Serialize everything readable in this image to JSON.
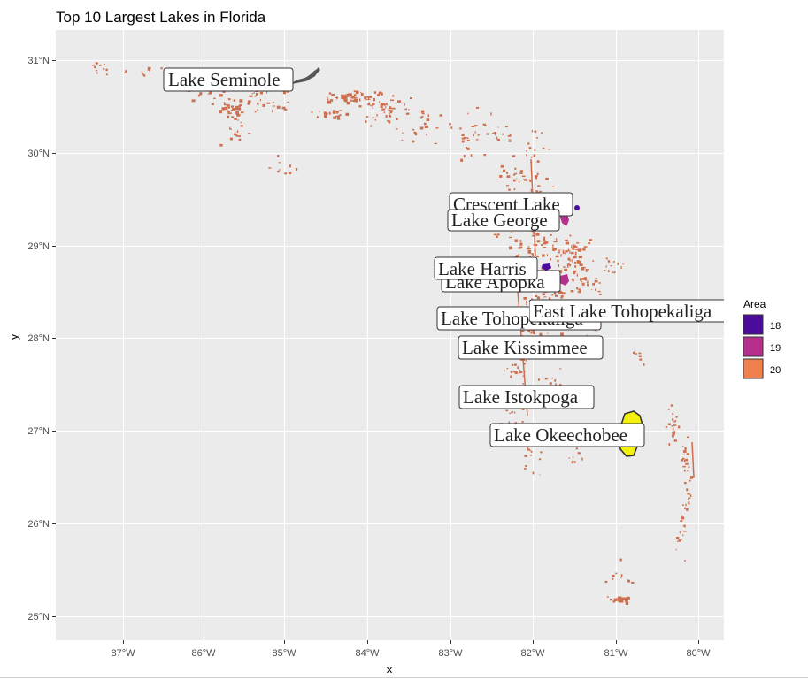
{
  "title": "Top 10 Largest Lakes in Florida",
  "x_axis": {
    "label": "x",
    "ticks": [
      "87°W",
      "86°W",
      "85°W",
      "84°W",
      "83°W",
      "82°W",
      "81°W",
      "80°W"
    ]
  },
  "y_axis": {
    "label": "y",
    "ticks": [
      "25°N",
      "26°N",
      "27°N",
      "28°N",
      "29°N",
      "30°N",
      "31°N"
    ]
  },
  "legend": {
    "title": "Area",
    "items": [
      {
        "label": "18",
        "color": "#4B0C9B"
      },
      {
        "label": "19",
        "color": "#B52F8C"
      },
      {
        "label": "20",
        "color": "#F0804E"
      }
    ]
  },
  "lakes": [
    {
      "name": "Lake Seminole"
    },
    {
      "name": "Crescent Lake"
    },
    {
      "name": "Lake George"
    },
    {
      "name": "Lake Harris"
    },
    {
      "name": "Lake Apopka"
    },
    {
      "name": "East Lake Tohopekaliga"
    },
    {
      "name": "Lake Tohopekaliga"
    },
    {
      "name": "Lake Kissimmee"
    },
    {
      "name": "Lake Istokpoga"
    },
    {
      "name": "Lake Okeechobee"
    }
  ],
  "colors": {
    "panel": "#EBEBEB",
    "grid": "#FFFFFF",
    "state_lakes": "#CC6F4E",
    "okeechobee_fill": "#F2F20E",
    "seminole": "#555555"
  }
}
